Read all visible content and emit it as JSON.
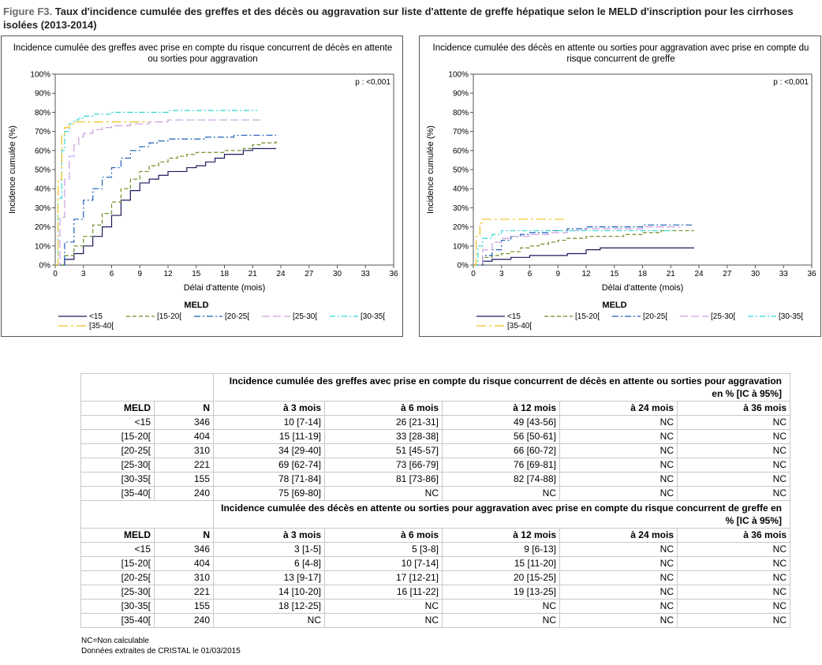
{
  "figure_label": "Figure F3.",
  "figure_title": "Taux d'incidence cumulée des greffes et des décès ou aggravation sur liste d'attente de greffe hépatique selon le MELD d'inscription pour les cirrhoses isolées (2013-2014)",
  "chart_data": [
    {
      "type": "line",
      "title": "Incidence cumulée des greffes avec prise en compte du risque concurrent de décès en attente ou sorties pour aggravation",
      "xlabel": "Délai d'attente (mois)",
      "ylabel": "Incidence cumulée (%)",
      "xlim": [
        0,
        36
      ],
      "ylim": [
        0,
        100
      ],
      "xticks": [
        0,
        3,
        6,
        9,
        12,
        15,
        18,
        21,
        24,
        27,
        30,
        33,
        36
      ],
      "yticks": [
        "0%",
        "10%",
        "20%",
        "30%",
        "40%",
        "50%",
        "60%",
        "70%",
        "80%",
        "90%",
        "100%"
      ],
      "annotation": "p : <0,001",
      "legend_title": "MELD",
      "series": [
        {
          "name": "<15",
          "color": "#1a1a5e",
          "dash": "",
          "x": [
            0,
            1,
            2,
            3,
            4,
            5,
            6,
            7,
            8,
            9,
            10,
            11,
            12,
            14,
            15,
            16,
            17,
            18,
            19,
            20,
            21,
            22,
            23.5
          ],
          "y": [
            0,
            3,
            6,
            10,
            15,
            20,
            26,
            34,
            39,
            43,
            45,
            47,
            49,
            51,
            52,
            54,
            56,
            58,
            58,
            60,
            61,
            61,
            61
          ]
        },
        {
          "name": "[15-20[",
          "color": "#6b8e23",
          "dash": "5,3",
          "x": [
            0,
            1,
            2,
            3,
            4,
            5,
            6,
            7,
            8,
            9,
            10,
            11,
            12,
            13,
            14,
            15,
            16,
            17,
            18,
            19,
            20,
            21,
            22,
            23.5
          ],
          "y": [
            0,
            5,
            10,
            15,
            21,
            27,
            33,
            40,
            45,
            49,
            52,
            54,
            56,
            57,
            58,
            59,
            59,
            59,
            60,
            60,
            61,
            63,
            64,
            65
          ]
        },
        {
          "name": "[20-25[",
          "color": "#1f5fb4",
          "dash": "8,3,2,3",
          "x": [
            0,
            1,
            2,
            3,
            4,
            5,
            6,
            7,
            8,
            9,
            10,
            11,
            12,
            13,
            15,
            16,
            18,
            19,
            21,
            23.5
          ],
          "y": [
            0,
            12,
            24,
            34,
            40,
            46,
            51,
            56,
            60,
            62,
            64,
            65,
            66,
            66,
            66,
            67,
            67,
            68,
            68,
            68
          ]
        },
        {
          "name": "[25-30[",
          "color": "#c9a0dc",
          "dash": "10,4",
          "x": [
            0,
            0.5,
            1,
            1.5,
            2,
            2.5,
            3,
            4,
            5,
            6,
            7,
            8,
            9,
            10,
            11,
            12,
            13,
            15,
            18,
            21,
            22
          ],
          "y": [
            0,
            25,
            45,
            57,
            63,
            67,
            69,
            71,
            72,
            73,
            73,
            74,
            74,
            75,
            75,
            76,
            76,
            76,
            76,
            76,
            76
          ]
        },
        {
          "name": "[30-35[",
          "color": "#33d6d6",
          "dash": "7,3,2,3",
          "x": [
            0,
            0.3,
            0.7,
            1,
            1.5,
            2,
            2.5,
            3,
            4,
            6,
            8,
            12,
            15,
            18,
            20,
            21.5
          ],
          "y": [
            0,
            35,
            60,
            70,
            74,
            76,
            77,
            78,
            79,
            80,
            80,
            81,
            81,
            81,
            81,
            81
          ]
        },
        {
          "name": "[35-40[",
          "color": "#f0c020",
          "dash": "12,4,3,4",
          "x": [
            0,
            0.3,
            0.7,
            1,
            1.5,
            2,
            3,
            4,
            6,
            8,
            10
          ],
          "y": [
            0,
            45,
            68,
            72,
            74,
            75,
            75,
            75,
            75,
            75,
            75
          ]
        }
      ]
    },
    {
      "type": "line",
      "title": "Incidence cumulée des décès en attente ou sorties pour aggravation avec prise en compte du risque concurrent de greffe",
      "xlabel": "Délai d'attente (mois)",
      "ylabel": "Incidence cumulée (%)",
      "xlim": [
        0,
        36
      ],
      "ylim": [
        0,
        100
      ],
      "xticks": [
        0,
        3,
        6,
        9,
        12,
        15,
        18,
        21,
        24,
        27,
        30,
        33,
        36
      ],
      "yticks": [
        "0%",
        "10%",
        "20%",
        "30%",
        "40%",
        "50%",
        "60%",
        "70%",
        "80%",
        "90%",
        "100%"
      ],
      "annotation": "p : <0,001",
      "legend_title": "MELD",
      "series": [
        {
          "name": "<15",
          "color": "#1a1a5e",
          "dash": "",
          "x": [
            0,
            1,
            2,
            3,
            4,
            5,
            6,
            8,
            10,
            12,
            13.5,
            15,
            18,
            21,
            23.5
          ],
          "y": [
            0,
            2,
            3,
            3,
            4,
            4,
            5,
            5,
            6,
            8,
            9,
            9,
            9,
            9,
            9
          ]
        },
        {
          "name": "[15-20[",
          "color": "#6b8e23",
          "dash": "5,3",
          "x": [
            0,
            1,
            2,
            3,
            4,
            5,
            6,
            7,
            8,
            9,
            10,
            11,
            12,
            14,
            16,
            18,
            20,
            23.5
          ],
          "y": [
            0,
            4,
            5,
            6,
            7,
            9,
            10,
            11,
            12,
            13,
            14,
            14,
            15,
            15,
            16,
            17,
            18,
            18
          ]
        },
        {
          "name": "[20-25[",
          "color": "#1f5fb4",
          "dash": "8,3,2,3",
          "x": [
            0,
            1,
            2,
            3,
            4,
            5,
            6,
            7,
            8,
            9,
            10,
            12,
            14,
            16,
            18,
            20,
            23.5
          ],
          "y": [
            0,
            5,
            8,
            13,
            15,
            16,
            17,
            17,
            18,
            18,
            19,
            20,
            20,
            20,
            21,
            21,
            21
          ]
        },
        {
          "name": "[25-30[",
          "color": "#c9a0dc",
          "dash": "10,4",
          "x": [
            0,
            1,
            2,
            3,
            4,
            5,
            6,
            8,
            10,
            12,
            15,
            18,
            21,
            22
          ],
          "y": [
            0,
            8,
            12,
            14,
            15,
            15,
            16,
            17,
            18,
            19,
            19,
            20,
            20,
            20
          ]
        },
        {
          "name": "[30-35[",
          "color": "#33d6d6",
          "dash": "7,3,2,3",
          "x": [
            0,
            0.5,
            1,
            2,
            3,
            5,
            8,
            12,
            15,
            18,
            21.5
          ],
          "y": [
            0,
            10,
            14,
            16,
            18,
            18,
            18,
            18,
            18,
            18,
            18
          ]
        },
        {
          "name": "[35-40[",
          "color": "#f0c020",
          "dash": "12,4,3,4",
          "x": [
            0,
            0.3,
            0.7,
            1,
            2,
            4,
            6,
            8,
            10
          ],
          "y": [
            0,
            15,
            22,
            24,
            24,
            24,
            24,
            24,
            24
          ]
        }
      ]
    }
  ],
  "table": {
    "col_headers": [
      "MELD",
      "N",
      "à 3 mois",
      "à 6 mois",
      "à 12 mois",
      "à 24 mois",
      "à 36 mois"
    ],
    "sections": [
      {
        "title": "Incidence cumulée des greffes avec prise en compte du risque concurrent de décès en attente ou sorties pour aggravation en % [IC à 95%]",
        "rows": [
          [
            "<15",
            "346",
            "10 [7-14]",
            "26 [21-31]",
            "49 [43-56]",
            "NC",
            "NC"
          ],
          [
            "[15-20[",
            "404",
            "15 [11-19]",
            "33 [28-38]",
            "56 [50-61]",
            "NC",
            "NC"
          ],
          [
            "[20-25[",
            "310",
            "34 [29-40]",
            "51 [45-57]",
            "66 [60-72]",
            "NC",
            "NC"
          ],
          [
            "[25-30[",
            "221",
            "69 [62-74]",
            "73 [66-79]",
            "76 [69-81]",
            "NC",
            "NC"
          ],
          [
            "[30-35[",
            "155",
            "78 [71-84]",
            "81 [73-86]",
            "82 [74-88]",
            "NC",
            "NC"
          ],
          [
            "[35-40[",
            "240",
            "75 [69-80]",
            "NC",
            "NC",
            "NC",
            "NC"
          ]
        ]
      },
      {
        "title": "Incidence cumulée des décès en attente ou sorties pour aggravation avec prise en compte du risque concurrent de greffe en % [IC à 95%]",
        "rows": [
          [
            "<15",
            "346",
            "3 [1-5]",
            "5 [3-8]",
            "9 [6-13]",
            "NC",
            "NC"
          ],
          [
            "[15-20[",
            "404",
            "6 [4-8]",
            "10 [7-14]",
            "15 [11-20]",
            "NC",
            "NC"
          ],
          [
            "[20-25[",
            "310",
            "13 [9-17]",
            "17 [12-21]",
            "20 [15-25]",
            "NC",
            "NC"
          ],
          [
            "[25-30[",
            "221",
            "14 [10-20]",
            "16 [11-22]",
            "19 [13-25]",
            "NC",
            "NC"
          ],
          [
            "[30-35[",
            "155",
            "18 [12-25]",
            "NC",
            "NC",
            "NC",
            "NC"
          ],
          [
            "[35-40[",
            "240",
            "NC",
            "NC",
            "NC",
            "NC",
            "NC"
          ]
        ]
      }
    ]
  },
  "footer": {
    "note1": "NC=Non calculable",
    "note2": "Données extraites de CRISTAL le 01/03/2015"
  }
}
